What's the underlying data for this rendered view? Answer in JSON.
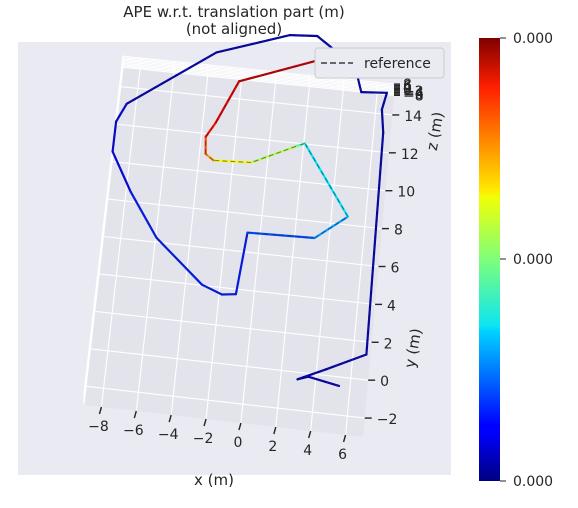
{
  "chart_data": {
    "type": "line",
    "projection": "3d",
    "title_line1": "APE w.r.t. translation part (m)",
    "title_line2": "(not aligned)",
    "xlabel": "x (m)",
    "ylabel": "y (m)",
    "zlabel": "z (m)",
    "x_ticks": [
      "−8",
      "−6",
      "−4",
      "−2",
      "0",
      "2",
      "4",
      "6"
    ],
    "y_ticks": [
      "−2",
      "0",
      "2",
      "4",
      "6",
      "8",
      "10",
      "12",
      "14"
    ],
    "z_ticks": [
      "−8",
      "−6",
      "−4",
      "−2",
      "0",
      "2",
      "4",
      "6",
      "8"
    ],
    "xlim": [
      -9,
      7
    ],
    "ylim": [
      -3,
      15
    ],
    "zlim": [
      -9,
      9
    ],
    "grid": true,
    "legend": {
      "placement": "top-right",
      "entries": [
        "reference"
      ]
    },
    "colorbar": {
      "colormap": "jet",
      "tick_labels": [
        "0.000",
        "0.000",
        "0.000"
      ]
    },
    "series": [
      {
        "name": "reference",
        "style": "dashed",
        "colored_by_error": true,
        "points": [
          {
            "x": 5.4,
            "y": -0.8,
            "z": 0
          },
          {
            "x": 3.6,
            "y": -0.5,
            "z": 0
          },
          {
            "x": 3.0,
            "y": -0.7,
            "z": 0
          },
          {
            "x": 4.6,
            "y": 0.0,
            "z": 0
          },
          {
            "x": 6.8,
            "y": 1.0,
            "z": 0
          },
          {
            "x": 6.6,
            "y": 12.7,
            "z": 0
          },
          {
            "x": 6.4,
            "y": 13.9,
            "z": 0
          },
          {
            "x": 6.6,
            "y": 14.8,
            "z": 0
          },
          {
            "x": 5.1,
            "y": 14.7,
            "z": 0
          },
          {
            "x": 4.6,
            "y": 16.0,
            "z": 0
          },
          {
            "x": 2.2,
            "y": 17.4,
            "z": 0
          },
          {
            "x": 0.6,
            "y": 17.3,
            "z": 0
          },
          {
            "x": -3.6,
            "y": 16.0,
            "z": 0
          },
          {
            "x": -8.5,
            "y": 12.8,
            "z": 0
          },
          {
            "x": -9.0,
            "y": 11.8,
            "z": 0
          },
          {
            "x": -9.0,
            "y": 10.2,
            "z": 0
          },
          {
            "x": -7.7,
            "y": 8.2,
            "z": 0
          },
          {
            "x": -5.9,
            "y": 5.9,
            "z": 0
          },
          {
            "x": -3.0,
            "y": 3.7,
            "z": 0
          },
          {
            "x": -1.8,
            "y": 3.3,
            "z": 0
          },
          {
            "x": -1.0,
            "y": 3.4,
            "z": 0
          },
          {
            "x": -0.7,
            "y": 6.7,
            "z": 0
          },
          {
            "x": 3.2,
            "y": 6.8,
            "z": 0
          },
          {
            "x": 5.0,
            "y": 8.1,
            "z": 0
          },
          {
            "x": 2.1,
            "y": 11.7,
            "z": 0
          },
          {
            "x": 1.6,
            "y": 11.5,
            "z": 0
          },
          {
            "x": -0.9,
            "y": 10.4,
            "z": 0
          },
          {
            "x": -3.1,
            "y": 10.3,
            "z": 0
          },
          {
            "x": -3.6,
            "y": 10.6,
            "z": 0
          },
          {
            "x": -3.7,
            "y": 11.5,
            "z": 0
          },
          {
            "x": -3.2,
            "y": 12.3,
            "z": 0
          },
          {
            "x": -2.1,
            "y": 14.6,
            "z": 0
          },
          {
            "x": 2.6,
            "y": 16.2,
            "z": 0
          }
        ],
        "error_levels": [
          0.05,
          0.05,
          0.05,
          0.05,
          0.05,
          0.05,
          0.05,
          0.05,
          0.05,
          0.05,
          0.05,
          0.05,
          0.05,
          0.1,
          0.1,
          0.12,
          0.15,
          0.15,
          0.15,
          0.15,
          0.15,
          0.2,
          0.28,
          0.35,
          0.45,
          0.55,
          0.62,
          0.72,
          0.8,
          0.86,
          0.9,
          0.93,
          0.95
        ]
      }
    ]
  }
}
